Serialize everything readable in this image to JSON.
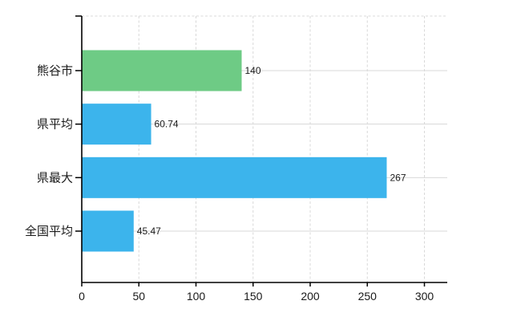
{
  "chart_data": {
    "type": "bar",
    "orientation": "horizontal",
    "title": "",
    "xlabel": "",
    "ylabel": "",
    "categories": [
      "熊谷市",
      "県平均",
      "県最大",
      "全国平均"
    ],
    "values": [
      140,
      60.74,
      267,
      45.47
    ],
    "value_labels": [
      "140",
      "60.74",
      "267",
      "45.47"
    ],
    "bar_colors": [
      "#6ecb85",
      "#3cb4ec",
      "#3cb4ec",
      "#3cb4ec"
    ],
    "xlim": [
      0,
      320
    ],
    "xticks": [
      0,
      50,
      100,
      150,
      200,
      250,
      300
    ],
    "xtick_labels": [
      "0",
      "50",
      "100",
      "150",
      "200",
      "250",
      "300"
    ],
    "grid": true,
    "grid_vertical_style": "dashed",
    "grid_horizontal_style": "solid",
    "legend": false,
    "colors": {
      "axis": "#000000",
      "grid": "#d8d8d8",
      "text": "#1a1a1a",
      "background": "#ffffff"
    }
  }
}
